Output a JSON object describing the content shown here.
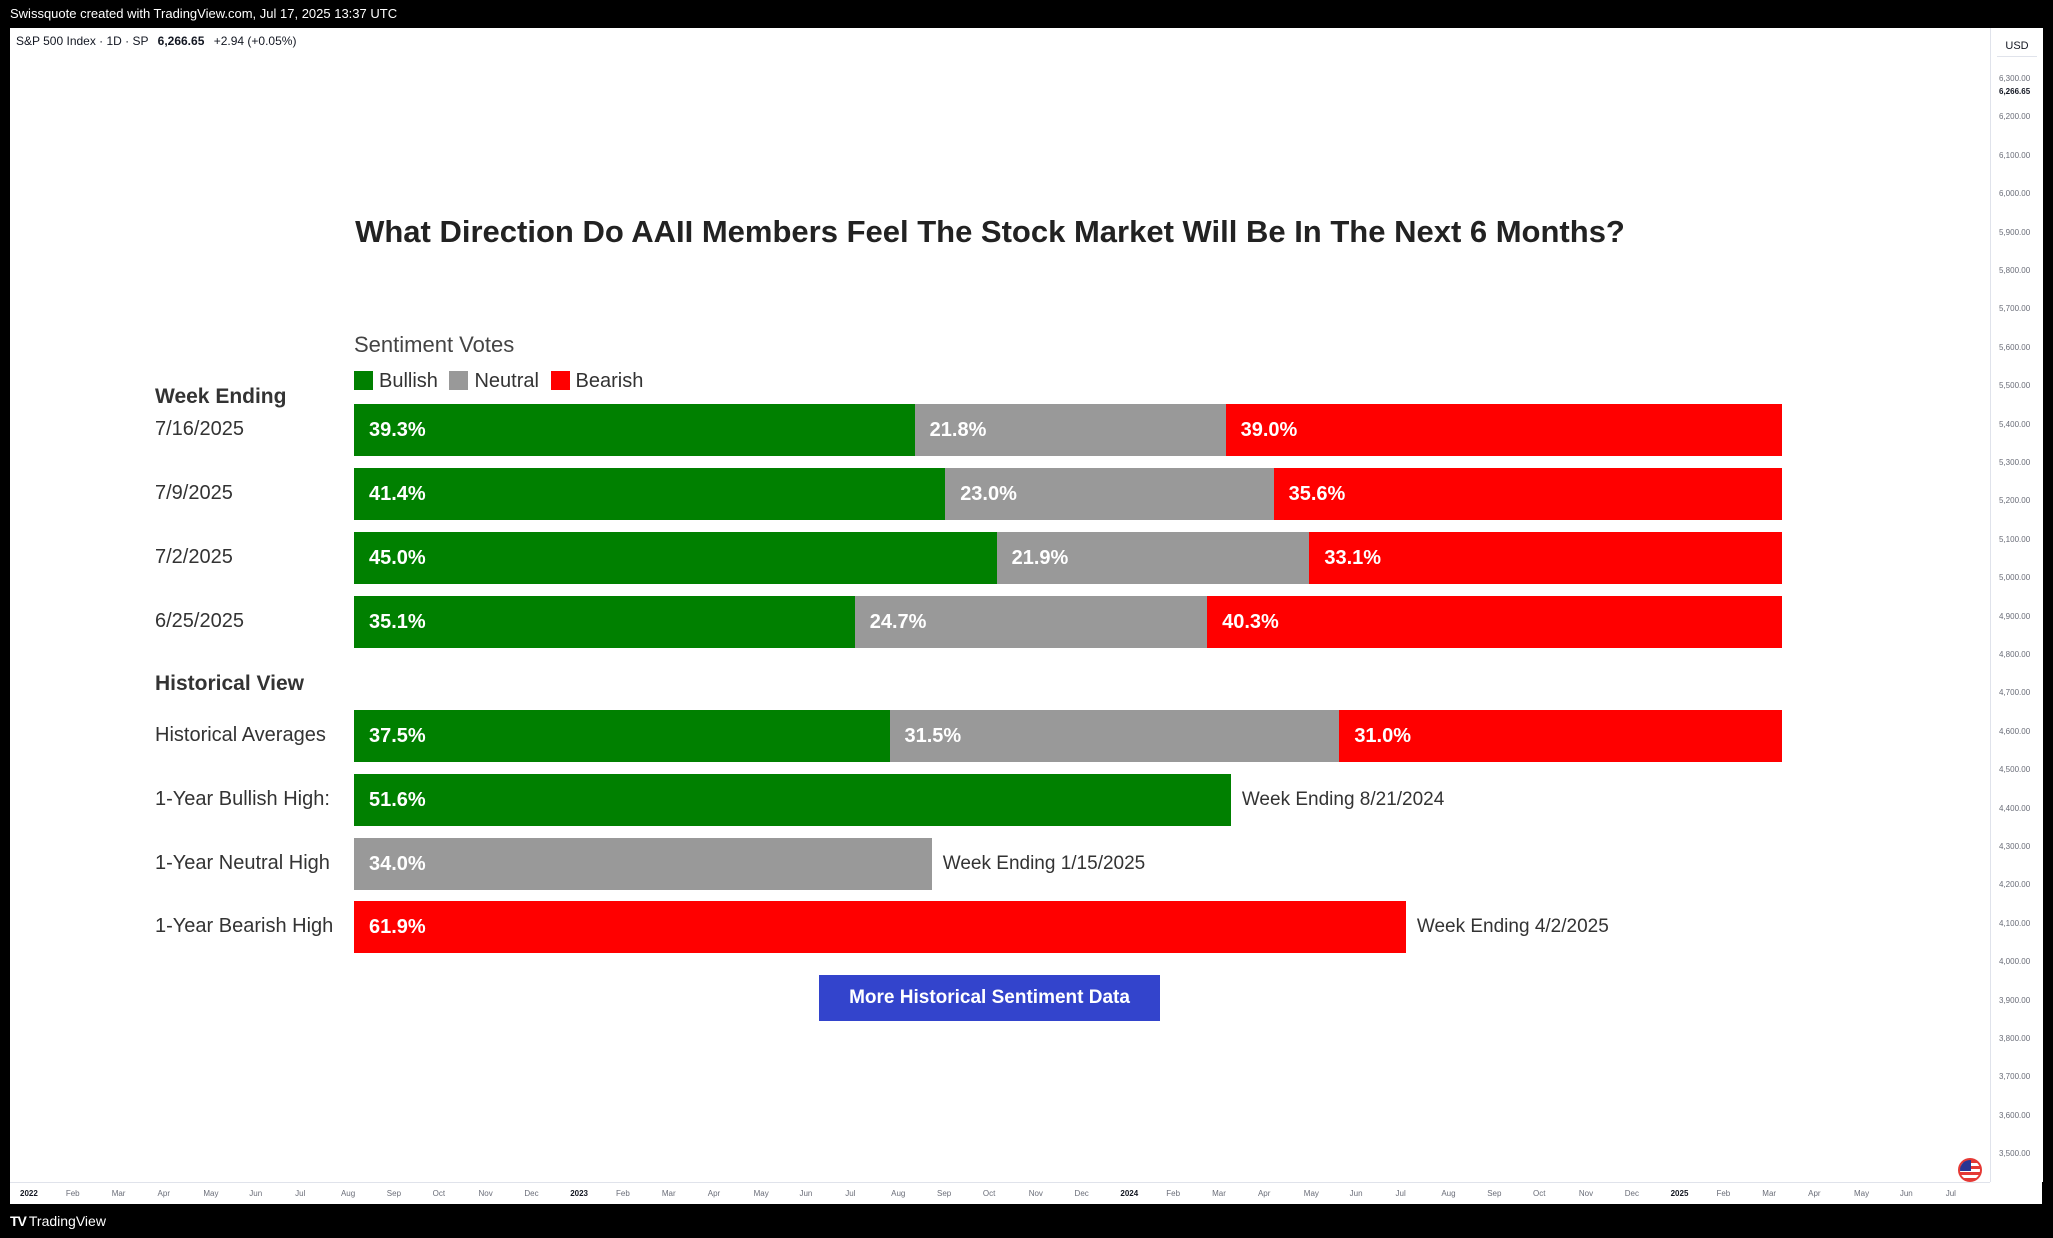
{
  "header": {
    "attribution": "Swissquote created with TradingView.com, Jul 17, 2025 13:37 UTC"
  },
  "symbol": {
    "name": "S&P 500 Index · 1D · SP",
    "last": "6,266.65",
    "change": "+2.94 (+0.05%)"
  },
  "price_axis": {
    "currency": "USD",
    "ticks": [
      "6,300.00",
      "6,266.65",
      "6,200.00",
      "6,100.00",
      "6,000.00",
      "5,900.00",
      "5,800.00",
      "5,700.00",
      "5,600.00",
      "5,500.00",
      "5,400.00",
      "5,300.00",
      "5,200.00",
      "5,100.00",
      "5,000.00",
      "4,900.00",
      "4,800.00",
      "4,700.00",
      "4,600.00",
      "4,500.00",
      "4,400.00",
      "4,300.00",
      "4,200.00",
      "4,100.00",
      "4,000.00",
      "3,900.00",
      "3,800.00",
      "3,700.00",
      "3,600.00",
      "3,500.00"
    ]
  },
  "time_axis": {
    "ticks": [
      "2022",
      "Feb",
      "Mar",
      "Apr",
      "May",
      "Jun",
      "Jul",
      "Aug",
      "Sep",
      "Oct",
      "Nov",
      "Dec",
      "2023",
      "Feb",
      "Mar",
      "Apr",
      "May",
      "Jun",
      "Jul",
      "Aug",
      "Sep",
      "Oct",
      "Nov",
      "Dec",
      "2024",
      "Feb",
      "Mar",
      "Apr",
      "May",
      "Jun",
      "Jul",
      "Aug",
      "Sep",
      "Oct",
      "Nov",
      "Dec",
      "2025",
      "Feb",
      "Mar",
      "Apr",
      "May",
      "Jun",
      "Jul"
    ]
  },
  "footer": {
    "logo_text": "TradingView"
  },
  "colors": {
    "bullish": "#008000",
    "neutral": "#999999",
    "bearish": "#ff0000",
    "button": "#3344cc"
  },
  "chart_data": {
    "type": "bar",
    "title": "What Direction Do AAII Members Feel The Stock Market Will Be In The Next 6 Months?",
    "subtitle": "Sentiment Votes",
    "week_heading": "Week Ending",
    "historical_heading": "Historical View",
    "legend": [
      "Bullish",
      "Neutral",
      "Bearish"
    ],
    "weeks": [
      {
        "label": "7/16/2025",
        "bullish": 39.3,
        "neutral": 21.8,
        "bearish": 39.0,
        "bullish_text": "39.3%",
        "neutral_text": "21.8%",
        "bearish_text": "39.0%"
      },
      {
        "label": "7/9/2025",
        "bullish": 41.4,
        "neutral": 23.0,
        "bearish": 35.6,
        "bullish_text": "41.4%",
        "neutral_text": "23.0%",
        "bearish_text": "35.6%"
      },
      {
        "label": "7/2/2025",
        "bullish": 45.0,
        "neutral": 21.9,
        "bearish": 33.1,
        "bullish_text": "45.0%",
        "neutral_text": "21.9%",
        "bearish_text": "33.1%"
      },
      {
        "label": "6/25/2025",
        "bullish": 35.1,
        "neutral": 24.7,
        "bearish": 40.3,
        "bullish_text": "35.1%",
        "neutral_text": "24.7%",
        "bearish_text": "40.3%"
      }
    ],
    "historical_averages": {
      "label": "Historical Averages",
      "bullish": 37.5,
      "neutral": 31.5,
      "bearish": 31.0,
      "bullish_text": "37.5%",
      "neutral_text": "31.5%",
      "bearish_text": "31.0%"
    },
    "highs": [
      {
        "label": "1-Year Bullish High:",
        "kind": "bullish",
        "value": 51.6,
        "value_text": "51.6%",
        "note": "Week Ending 8/21/2024"
      },
      {
        "label": "1-Year Neutral High",
        "kind": "neutral",
        "value": 34.0,
        "value_text": "34.0%",
        "note": "Week Ending 1/15/2025"
      },
      {
        "label": "1-Year Bearish High",
        "kind": "bearish",
        "value": 61.9,
        "value_text": "61.9%",
        "note": "Week Ending 4/2/2025"
      }
    ],
    "xlim": [
      0,
      100
    ]
  },
  "button": {
    "label": "More Historical Sentiment Data"
  }
}
